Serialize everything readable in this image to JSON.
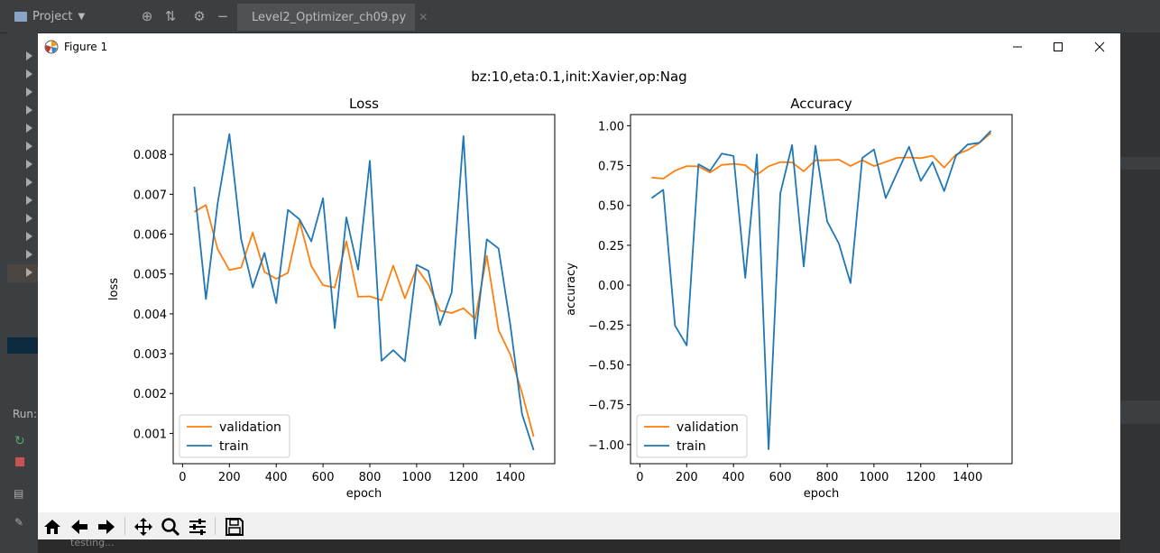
{
  "ide": {
    "project_label": "Project",
    "file_tab": "Level2_Optimizer_ch09.py",
    "run_label": "Run:",
    "console_text": "testing..."
  },
  "window": {
    "title": "Figure 1"
  },
  "figure": {
    "suptitle": "bz:10,eta:0.1,init:Xavier,op:Nag"
  },
  "colors": {
    "train": "#1f77b4",
    "validation": "#ff7f0e"
  },
  "chart_data": [
    {
      "type": "line",
      "title": "Loss",
      "xlabel": "epoch",
      "ylabel": "loss",
      "xlim": [
        -40,
        1590
      ],
      "ylim": [
        0.00024,
        0.009
      ],
      "xticks": [
        0,
        200,
        400,
        600,
        800,
        1000,
        1200,
        1400
      ],
      "yticks": [
        0.001,
        0.002,
        0.003,
        0.004,
        0.005,
        0.006,
        0.007,
        0.008
      ],
      "ytick_labels": [
        "0.001",
        "0.002",
        "0.003",
        "0.004",
        "0.005",
        "0.006",
        "0.007",
        "0.008"
      ],
      "legend_loc": "lower-left",
      "grid": false,
      "x": [
        50,
        100,
        150,
        200,
        250,
        300,
        350,
        400,
        450,
        500,
        550,
        600,
        650,
        700,
        750,
        800,
        850,
        900,
        950,
        1000,
        1050,
        1100,
        1150,
        1200,
        1250,
        1300,
        1350,
        1400,
        1450,
        1500
      ],
      "series": [
        {
          "name": "validation",
          "color": "#ff7f0e",
          "values": [
            0.00656,
            0.00673,
            0.00562,
            0.0051,
            0.00516,
            0.00604,
            0.00505,
            0.00488,
            0.00503,
            0.00633,
            0.0052,
            0.00472,
            0.00466,
            0.00582,
            0.00443,
            0.00444,
            0.00434,
            0.00521,
            0.00439,
            0.00515,
            0.00474,
            0.00408,
            0.00402,
            0.00414,
            0.00387,
            0.00546,
            0.00359,
            0.00298,
            0.00202,
            0.00092
          ]
        },
        {
          "name": "train",
          "color": "#1f77b4",
          "values": [
            0.00719,
            0.00437,
            0.00677,
            0.00851,
            0.00588,
            0.00466,
            0.00553,
            0.00427,
            0.00661,
            0.00637,
            0.00582,
            0.0069,
            0.00364,
            0.00642,
            0.00511,
            0.00784,
            0.00282,
            0.00309,
            0.00281,
            0.00523,
            0.00508,
            0.00372,
            0.00454,
            0.00846,
            0.00338,
            0.00587,
            0.00564,
            0.00373,
            0.00149,
            0.00058
          ]
        }
      ]
    },
    {
      "type": "line",
      "title": "Accuracy",
      "xlabel": "epoch",
      "ylabel": "accuracy",
      "xlim": [
        -40,
        1590
      ],
      "ylim": [
        -1.12,
        1.07
      ],
      "xticks": [
        0,
        200,
        400,
        600,
        800,
        1000,
        1200,
        1400
      ],
      "yticks": [
        -1.0,
        -0.75,
        -0.5,
        -0.25,
        0.0,
        0.25,
        0.5,
        0.75,
        1.0
      ],
      "ytick_labels": [
        "−1.00",
        "−0.75",
        "−0.50",
        "−0.25",
        "0.00",
        "0.25",
        "0.50",
        "0.75",
        "1.00"
      ],
      "legend_loc": "lower-left",
      "grid": false,
      "x": [
        50,
        100,
        150,
        200,
        250,
        300,
        350,
        400,
        450,
        500,
        550,
        600,
        650,
        700,
        750,
        800,
        850,
        900,
        950,
        1000,
        1050,
        1100,
        1150,
        1200,
        1250,
        1300,
        1350,
        1400,
        1450,
        1500
      ],
      "series": [
        {
          "name": "validation",
          "color": "#ff7f0e",
          "values": [
            0.675,
            0.668,
            0.718,
            0.747,
            0.745,
            0.706,
            0.754,
            0.761,
            0.753,
            0.693,
            0.746,
            0.772,
            0.77,
            0.714,
            0.783,
            0.783,
            0.787,
            0.747,
            0.785,
            0.747,
            0.773,
            0.799,
            0.801,
            0.796,
            0.812,
            0.737,
            0.819,
            0.847,
            0.892,
            0.954
          ]
        },
        {
          "name": "train",
          "color": "#1f77b4",
          "values": [
            0.546,
            0.598,
            -0.253,
            -0.378,
            0.759,
            0.718,
            0.825,
            0.81,
            0.045,
            0.82,
            -1.03,
            0.577,
            0.879,
            0.117,
            0.875,
            0.4,
            0.261,
            0.013,
            0.798,
            0.851,
            0.546,
            0.707,
            0.868,
            0.654,
            0.772,
            0.59,
            0.81,
            0.882,
            0.893,
            0.968
          ]
        }
      ]
    }
  ],
  "toolbar": {
    "buttons": [
      "home-icon",
      "back-icon",
      "forward-icon",
      "pan-icon",
      "zoom-icon",
      "configure-icon",
      "save-icon"
    ]
  }
}
